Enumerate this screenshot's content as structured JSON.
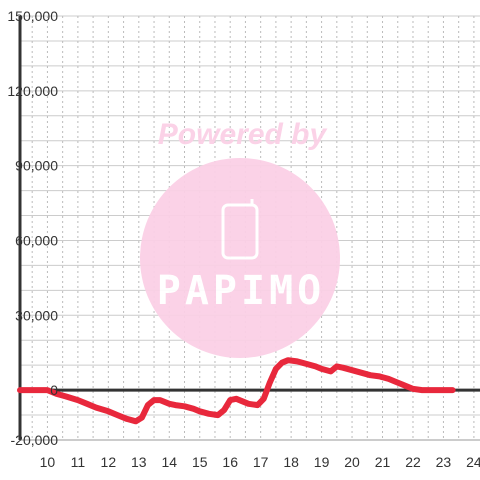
{
  "chart_data": {
    "type": "line",
    "title": "",
    "xlabel": "",
    "ylabel": "",
    "xlim": [
      9.1,
      24.2
    ],
    "ylim": [
      -20000,
      150000
    ],
    "x_ticks": [
      10,
      11,
      12,
      13,
      14,
      15,
      16,
      17,
      18,
      19,
      20,
      21,
      22,
      23,
      24
    ],
    "y_ticks": [
      -20000,
      0,
      30000,
      60000,
      90000,
      120000,
      150000
    ],
    "y_tick_labels": [
      "-20,000",
      "0",
      "30,000",
      "60,000",
      "90,000",
      "120,000",
      "150,000"
    ],
    "grid": true,
    "series": [
      {
        "color": "#e8283c",
        "x": [
          9.1,
          9.5,
          10.0,
          10.3,
          10.6,
          11.0,
          11.3,
          11.6,
          12.0,
          12.3,
          12.6,
          12.9,
          13.1,
          13.3,
          13.5,
          13.7,
          14.0,
          14.2,
          14.5,
          14.8,
          15.0,
          15.3,
          15.6,
          15.8,
          16.0,
          16.2,
          16.4,
          16.6,
          16.9,
          17.1,
          17.3,
          17.5,
          17.7,
          17.9,
          18.2,
          18.5,
          18.8,
          19.0,
          19.3,
          19.5,
          19.7,
          20.0,
          20.3,
          20.6,
          20.9,
          21.2,
          21.5,
          21.8,
          22.0,
          22.3,
          22.7,
          23.0,
          23.3
        ],
        "y": [
          0,
          0,
          0,
          -1500,
          -2500,
          -4000,
          -5500,
          -7000,
          -8500,
          -10000,
          -11500,
          -12500,
          -11000,
          -6000,
          -4000,
          -4000,
          -5500,
          -6000,
          -6500,
          -7500,
          -8500,
          -9500,
          -10000,
          -8000,
          -4000,
          -3500,
          -4500,
          -5500,
          -6000,
          -3500,
          3000,
          8500,
          11000,
          12000,
          11500,
          10500,
          9500,
          8500,
          7500,
          9500,
          9000,
          8000,
          7000,
          6000,
          5500,
          4500,
          3000,
          1500,
          500,
          0,
          0,
          0,
          0
        ]
      }
    ]
  },
  "watermark": {
    "powered_text": "Powered by",
    "brand_text": "PAPIMO",
    "color": "#fbd0e6"
  }
}
